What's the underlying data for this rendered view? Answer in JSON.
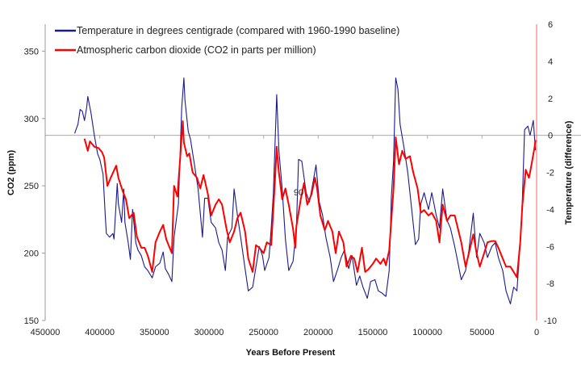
{
  "chart_data": {
    "type": "line",
    "xlabel": "Years Before Present",
    "ylabel": "CO2 (ppm)",
    "y2label": "Temperature (difference)",
    "xlim": [
      450000,
      0
    ],
    "ylim": [
      150,
      370
    ],
    "y2lim": [
      -10,
      6
    ],
    "xticks": [
      "450000",
      "400000",
      "350000",
      "300000",
      "250000",
      "200000",
      "150000",
      "100000",
      "50000",
      "0"
    ],
    "xtick_values": [
      450000,
      400000,
      350000,
      300000,
      250000,
      200000,
      150000,
      100000,
      50000,
      0
    ],
    "yticks": [
      "150",
      "200",
      "250",
      "300",
      "350"
    ],
    "ytick_values": [
      150,
      200,
      250,
      300,
      350
    ],
    "y2ticks": [
      "-10",
      "-8",
      "-6",
      "-4",
      "-2",
      "0",
      "2",
      "4",
      "6"
    ],
    "y2tick_values": [
      -10,
      -8,
      -6,
      -4,
      -2,
      0,
      2,
      4,
      6
    ],
    "reference_line_temp": 0,
    "annotation": "90",
    "legend_position": "top-left",
    "colors": {
      "temperature": "#1a1a8c",
      "co2": "#ff0000",
      "axis_right": "#ff6666",
      "reference": "#aaaaaa"
    },
    "series": [
      {
        "name": "Temperature in degrees centigrade (compared with 1960-1990 baseline)",
        "axis": "right",
        "x": [
          423000,
          420000,
          418000,
          416000,
          414000,
          412000,
          411000,
          408000,
          405000,
          402000,
          400000,
          397000,
          395000,
          394000,
          391000,
          388000,
          387000,
          384000,
          383000,
          380000,
          378000,
          377000,
          374000,
          372000,
          370000,
          367000,
          365000,
          362000,
          359000,
          356000,
          352000,
          349000,
          345000,
          342000,
          340000,
          337000,
          334000,
          332000,
          328000,
          325000,
          323000,
          322000,
          319000,
          317000,
          313000,
          310000,
          306000,
          304000,
          301000,
          298000,
          294000,
          291000,
          288000,
          285000,
          283000,
          279000,
          277000,
          274000,
          271000,
          267000,
          264000,
          260000,
          257000,
          254000,
          251000,
          249000,
          245000,
          243000,
          241000,
          238000,
          236000,
          233000,
          230000,
          227000,
          223000,
          220000,
          218000,
          215000,
          211000,
          208000,
          204000,
          202000,
          199000,
          196000,
          193000,
          189000,
          186000,
          182000,
          179000,
          176000,
          172000,
          169000,
          165000,
          162000,
          159000,
          155000,
          152000,
          148000,
          145000,
          142000,
          138000,
          135000,
          133000,
          131000,
          129000,
          127000,
          125000,
          121000,
          118000,
          114000,
          111000,
          108000,
          106000,
          103000,
          99000,
          96000,
          92000,
          89000,
          86000,
          82000,
          79000,
          75000,
          72000,
          69000,
          65000,
          62000,
          58000,
          55000,
          52000,
          48000,
          45000,
          41000,
          38000,
          35000,
          31000,
          28000,
          24000,
          21000,
          18000,
          15000,
          13000,
          11000,
          8000,
          6000,
          3000,
          1000
        ],
        "y": [
          0.1,
          0.6,
          1.4,
          1.3,
          0.8,
          1.5,
          2.1,
          1.2,
          0.0,
          -1.0,
          -1.3,
          -2.1,
          -4.3,
          -5.3,
          -5.5,
          -5.3,
          -5.6,
          -2.6,
          -3.7,
          -4.7,
          -2.9,
          -4.7,
          -5.8,
          -6.7,
          -4.0,
          -5.8,
          -6.2,
          -6.5,
          -7.1,
          -7.3,
          -7.7,
          -7.1,
          -6.9,
          -6.3,
          -7.2,
          -7.5,
          -7.9,
          -5.5,
          -3.7,
          1.5,
          3.1,
          1.9,
          0.2,
          -0.2,
          -1.7,
          -2.9,
          -5.5,
          -3.4,
          -3.4,
          -4.7,
          -5.0,
          -5.8,
          -6.2,
          -7.3,
          -5.5,
          -5.0,
          -2.9,
          -4.3,
          -5.5,
          -7.2,
          -8.4,
          -8.2,
          -7.1,
          -6.0,
          -6.5,
          -7.3,
          -6.6,
          -5.0,
          -3.1,
          2.2,
          -0.8,
          -2.9,
          -5.6,
          -7.3,
          -6.8,
          -5.0,
          -1.3,
          -1.4,
          -3.1,
          -3.6,
          -2.3,
          -1.6,
          -3.6,
          -4.3,
          -5.5,
          -6.6,
          -7.9,
          -7.2,
          -6.6,
          -6.2,
          -7.2,
          -6.5,
          -8.1,
          -7.6,
          -8.2,
          -8.8,
          -7.9,
          -7.8,
          -8.4,
          -8.5,
          -8.7,
          -7.3,
          -3.3,
          -1.4,
          3.1,
          2.5,
          0.6,
          -0.8,
          -2.0,
          -4.2,
          -5.9,
          -5.6,
          -3.7,
          -3.1,
          -4.0,
          -3.1,
          -4.3,
          -5.0,
          -2.9,
          -4.6,
          -5.0,
          -6.0,
          -6.9,
          -7.8,
          -7.3,
          -6.2,
          -4.2,
          -6.6,
          -5.3,
          -5.8,
          -6.6,
          -6.0,
          -5.8,
          -6.6,
          -7.3,
          -8.4,
          -9.1,
          -8.2,
          -8.4,
          -5.8,
          -3.4,
          0.3,
          0.5,
          0.0,
          0.8,
          -0.8
        ]
      },
      {
        "name": "Atmospheric carbon dioxide (CO2 in parts per million)",
        "axis": "left",
        "x": [
          414000,
          411000,
          409000,
          405000,
          401000,
          398000,
          396000,
          393000,
          390000,
          385000,
          383000,
          379000,
          376000,
          373000,
          369000,
          366000,
          362000,
          359000,
          356000,
          352000,
          349000,
          345000,
          342000,
          339000,
          334000,
          332000,
          329000,
          327000,
          324000,
          323000,
          320000,
          318000,
          315000,
          311000,
          308000,
          305000,
          301000,
          298000,
          294000,
          291000,
          288000,
          284000,
          281000,
          277000,
          274000,
          271000,
          267000,
          264000,
          260000,
          257000,
          254000,
          250000,
          247000,
          243000,
          240000,
          238000,
          236000,
          233000,
          230000,
          227000,
          223000,
          221000,
          220000,
          216000,
          213000,
          210000,
          206000,
          203000,
          201000,
          198000,
          194000,
          191000,
          187000,
          184000,
          181000,
          177000,
          174000,
          170000,
          167000,
          164000,
          160000,
          157000,
          154000,
          150000,
          147000,
          143000,
          140000,
          138000,
          135000,
          131000,
          129000,
          126000,
          123000,
          120000,
          116000,
          113000,
          109000,
          106000,
          103000,
          99000,
          96000,
          92000,
          89000,
          86000,
          82000,
          79000,
          75000,
          72000,
          69000,
          65000,
          62000,
          58000,
          55000,
          52000,
          48000,
          45000,
          41000,
          38000,
          35000,
          31000,
          28000,
          24000,
          21000,
          18000,
          15000,
          13000,
          10000,
          7000,
          6000,
          2000,
          1000
        ],
        "y": [
          285,
          276,
          283,
          279,
          278,
          275,
          271,
          250,
          256,
          265,
          256,
          246,
          240,
          226,
          230,
          212,
          204,
          204,
          198,
          186,
          208,
          216,
          221,
          210,
          200,
          250,
          242,
          264,
          298,
          282,
          272,
          274,
          260,
          256,
          248,
          258,
          244,
          228,
          236,
          240,
          236,
          218,
          208,
          216,
          226,
          230,
          216,
          196,
          186,
          206,
          204,
          200,
          208,
          206,
          248,
          279,
          260,
          240,
          248,
          236,
          218,
          204,
          220,
          240,
          252,
          236,
          244,
          256,
          248,
          228,
          217,
          224,
          216,
          200,
          216,
          208,
          190,
          198,
          196,
          186,
          204,
          186,
          188,
          192,
          196,
          192,
          196,
          191,
          202,
          248,
          286,
          266,
          276,
          270,
          272,
          260,
          248,
          230,
          232,
          228,
          230,
          224,
          208,
          236,
          224,
          228,
          228,
          218,
          208,
          190,
          200,
          214,
          200,
          190,
          200,
          208,
          209,
          209,
          204,
          196,
          190,
          190,
          186,
          182,
          208,
          236,
          262,
          256,
          260,
          278,
          284
        ]
      }
    ]
  }
}
